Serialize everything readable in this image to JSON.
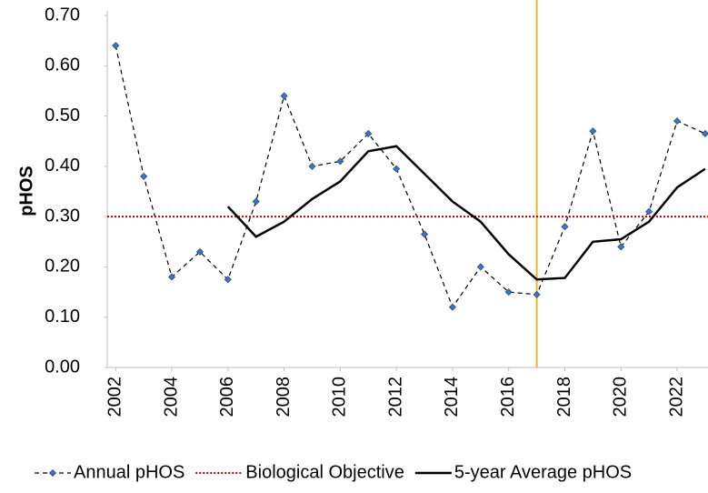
{
  "chart_data": {
    "type": "line",
    "y_label": "pHOS",
    "x": [
      2002,
      2003,
      2004,
      2005,
      2006,
      2007,
      2008,
      2009,
      2010,
      2011,
      2012,
      2013,
      2014,
      2015,
      2016,
      2017,
      2018,
      2019,
      2020,
      2021,
      2022,
      2023
    ],
    "xlim": [
      2001.7,
      2023.1
    ],
    "xticks": [
      2002,
      2004,
      2006,
      2008,
      2010,
      2012,
      2014,
      2016,
      2018,
      2020,
      2022
    ],
    "ylim": [
      0,
      0.7
    ],
    "yticks": [
      {
        "value": 0,
        "label": "0.00"
      },
      {
        "value": 0.1,
        "label": "0.10"
      },
      {
        "value": 0.2,
        "label": "0.20"
      },
      {
        "value": 0.3,
        "label": "0.30"
      },
      {
        "value": 0.4,
        "label": "0.40"
      },
      {
        "value": 0.5,
        "label": "0.50"
      },
      {
        "value": 0.6,
        "label": "0.60"
      },
      {
        "value": 0.7,
        "label": "0.70"
      }
    ],
    "series": [
      {
        "name": "Annual pHOS",
        "color": "#4472c4",
        "style": "dashed-markers",
        "values": [
          0.64,
          0.38,
          0.18,
          0.23,
          0.175,
          0.33,
          0.54,
          0.4,
          0.41,
          0.465,
          0.395,
          0.265,
          0.12,
          0.2,
          0.15,
          0.145,
          0.28,
          0.47,
          0.24,
          0.31,
          0.49,
          0.465
        ]
      },
      {
        "name": "Biological Objective",
        "color": "#c00000",
        "style": "dotted",
        "value": 0.3
      },
      {
        "name": "5-year Average pHOS",
        "color": "#000000",
        "style": "solid",
        "values": [
          null,
          null,
          null,
          null,
          0.32,
          0.26,
          0.29,
          0.335,
          0.37,
          0.43,
          0.44,
          0.385,
          0.33,
          0.29,
          0.225,
          0.175,
          0.178,
          0.25,
          0.255,
          0.29,
          0.358,
          0.395
        ]
      }
    ],
    "vline": {
      "x": 2017,
      "color": "#f5b324"
    },
    "legend": "bottom"
  }
}
